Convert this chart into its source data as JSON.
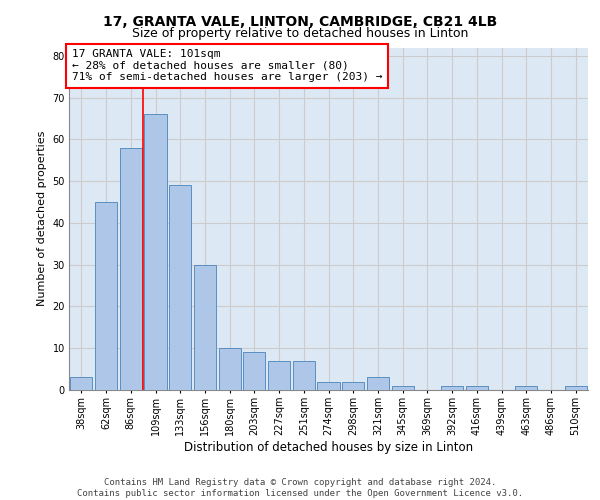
{
  "title_line1": "17, GRANTA VALE, LINTON, CAMBRIDGE, CB21 4LB",
  "title_line2": "Size of property relative to detached houses in Linton",
  "xlabel": "Distribution of detached houses by size in Linton",
  "ylabel": "Number of detached properties",
  "categories": [
    "38sqm",
    "62sqm",
    "86sqm",
    "109sqm",
    "133sqm",
    "156sqm",
    "180sqm",
    "203sqm",
    "227sqm",
    "251sqm",
    "274sqm",
    "298sqm",
    "321sqm",
    "345sqm",
    "369sqm",
    "392sqm",
    "416sqm",
    "439sqm",
    "463sqm",
    "486sqm",
    "510sqm"
  ],
  "values": [
    3,
    45,
    58,
    66,
    49,
    30,
    10,
    9,
    7,
    7,
    2,
    2,
    3,
    1,
    0,
    1,
    1,
    0,
    1,
    0,
    1
  ],
  "bar_color": "#aec6e8",
  "bar_edge_color": "#5a8fc0",
  "vline_x": 2.5,
  "vline_color": "red",
  "annotation_text": "17 GRANTA VALE: 101sqm\n← 28% of detached houses are smaller (80)\n71% of semi-detached houses are larger (203) →",
  "annotation_box_color": "white",
  "annotation_box_edge_color": "red",
  "ylim": [
    0,
    82
  ],
  "yticks": [
    0,
    10,
    20,
    30,
    40,
    50,
    60,
    70,
    80
  ],
  "grid_color": "#cccccc",
  "background_color": "#dde8f5",
  "footer_text": "Contains HM Land Registry data © Crown copyright and database right 2024.\nContains public sector information licensed under the Open Government Licence v3.0.",
  "title_fontsize": 10,
  "subtitle_fontsize": 9,
  "xlabel_fontsize": 8.5,
  "ylabel_fontsize": 8,
  "tick_fontsize": 7,
  "annotation_fontsize": 8,
  "footer_fontsize": 6.5
}
